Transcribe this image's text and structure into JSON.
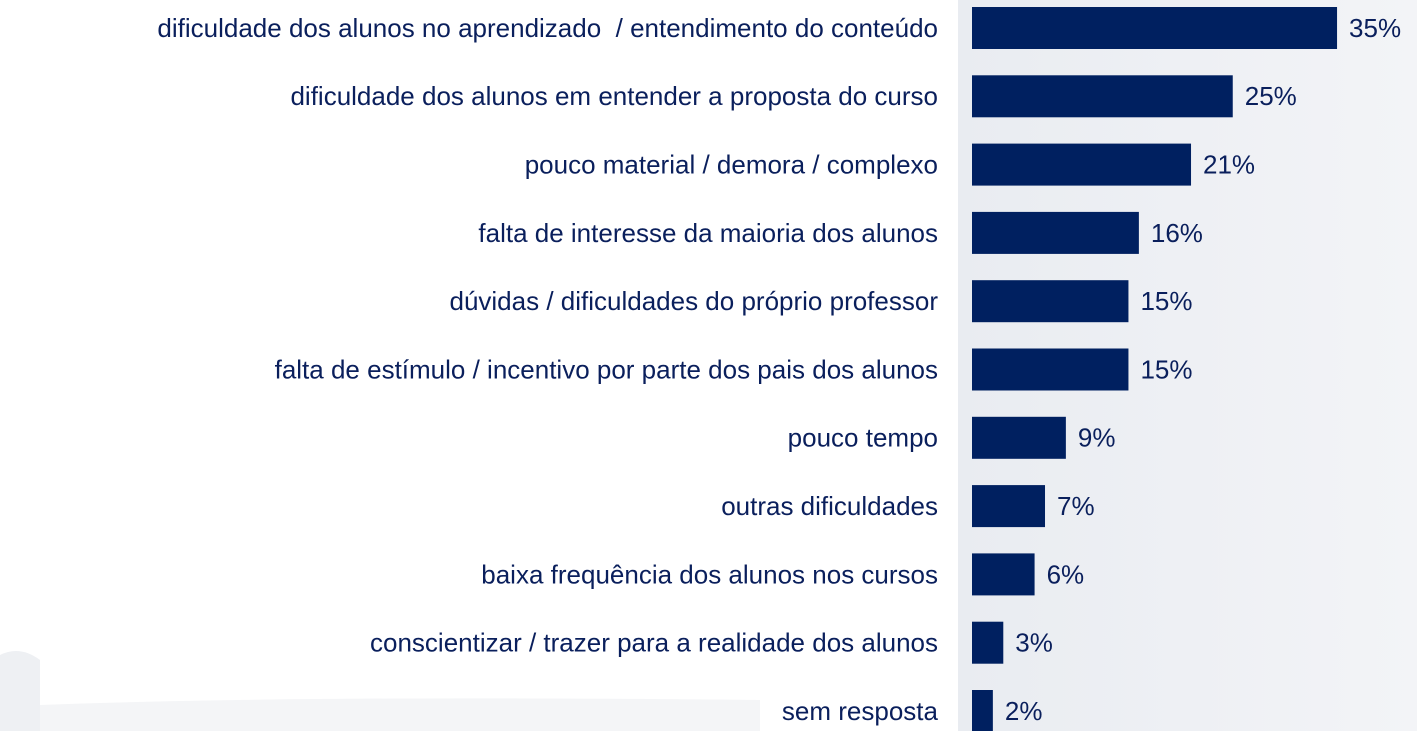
{
  "chart_data": {
    "type": "hbar",
    "categories": [
      "dificuldade dos alunos no aprendizado  / entendimento do conteúdo",
      "dificuldade dos alunos em entender a proposta do curso",
      "pouco material / demora / complexo",
      "falta de interesse da maioria dos alunos",
      "dúvidas / dificuldades do próprio professor",
      "falta de estímulo / incentivo por parte dos pais dos alunos",
      "pouco tempo",
      "outras dificuldades",
      "baixa frequência dos alunos nos cursos",
      "conscientizar / trazer para a realidade dos alunos",
      "sem resposta"
    ],
    "values": [
      35,
      25,
      21,
      16,
      15,
      15,
      9,
      7,
      6,
      3,
      2
    ],
    "value_labels": [
      "35%",
      "25%",
      "21%",
      "16%",
      "15%",
      "15%",
      "9%",
      "7%",
      "6%",
      "3%",
      "2%"
    ],
    "color": "#002060"
  }
}
